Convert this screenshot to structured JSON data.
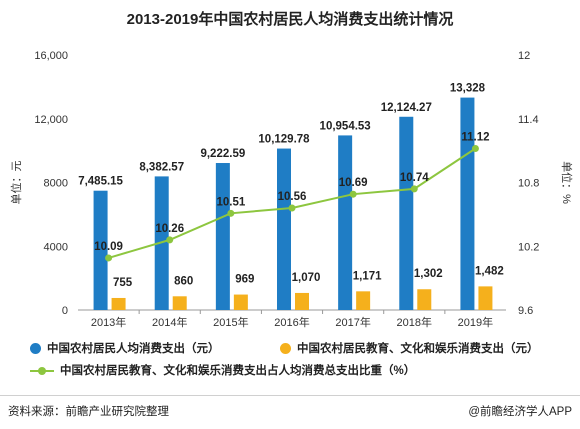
{
  "title": "2013-2019年中国农村居民人均消费支出统计情况",
  "footer": {
    "source": "资料来源：前瞻产业研究院整理",
    "brand": "@前瞻经济学人APP"
  },
  "colors": {
    "bar1": "#1f7dc5",
    "bar2": "#f5b01c",
    "line": "#8dc63f"
  },
  "chart_data": {
    "type": "bar",
    "title": "2013-2019年中国农村居民人均消费支出统计情况",
    "categories": [
      "2013年",
      "2014年",
      "2015年",
      "2016年",
      "2017年",
      "2018年",
      "2019年"
    ],
    "series": [
      {
        "name": "中国农村居民人均消费支出（元）",
        "type": "bar",
        "axis": "left",
        "values": [
          7485.15,
          8382.57,
          9222.59,
          10129.78,
          10954.53,
          12124.27,
          13328
        ],
        "labels": [
          "7,485.15",
          "8,382.57",
          "9,222.59",
          "10,129.78",
          "10,954.53",
          "12,124.27",
          "13,328"
        ]
      },
      {
        "name": "中国农村居民教育、文化和娱乐消费支出（元）",
        "type": "bar",
        "axis": "left",
        "values": [
          755,
          860,
          969,
          1070,
          1171,
          1302,
          1482
        ],
        "labels": [
          "755",
          "860",
          "969",
          "1,070",
          "1,171",
          "1,302",
          "1,482"
        ]
      },
      {
        "name": "中国农村居民教育、文化和娱乐消费支出占人均消费总支出比重（%）",
        "type": "line",
        "axis": "right",
        "values": [
          10.09,
          10.26,
          10.51,
          10.56,
          10.69,
          10.74,
          11.12
        ],
        "labels": [
          "10.09",
          "10.26",
          "10.51",
          "10.56",
          "10.69",
          "10.74",
          "11.12"
        ]
      }
    ],
    "y_left": {
      "label": "单位：元",
      "range": [
        0,
        16000
      ],
      "ticks": [
        "0",
        "4000",
        "8000",
        "12,000",
        "16,000"
      ]
    },
    "y_right": {
      "label": "单位：%",
      "range": [
        9.6,
        12
      ],
      "ticks": [
        "9.6",
        "10.2",
        "10.8",
        "11.4",
        "12"
      ]
    },
    "grid": false,
    "legend_position": "bottom"
  }
}
